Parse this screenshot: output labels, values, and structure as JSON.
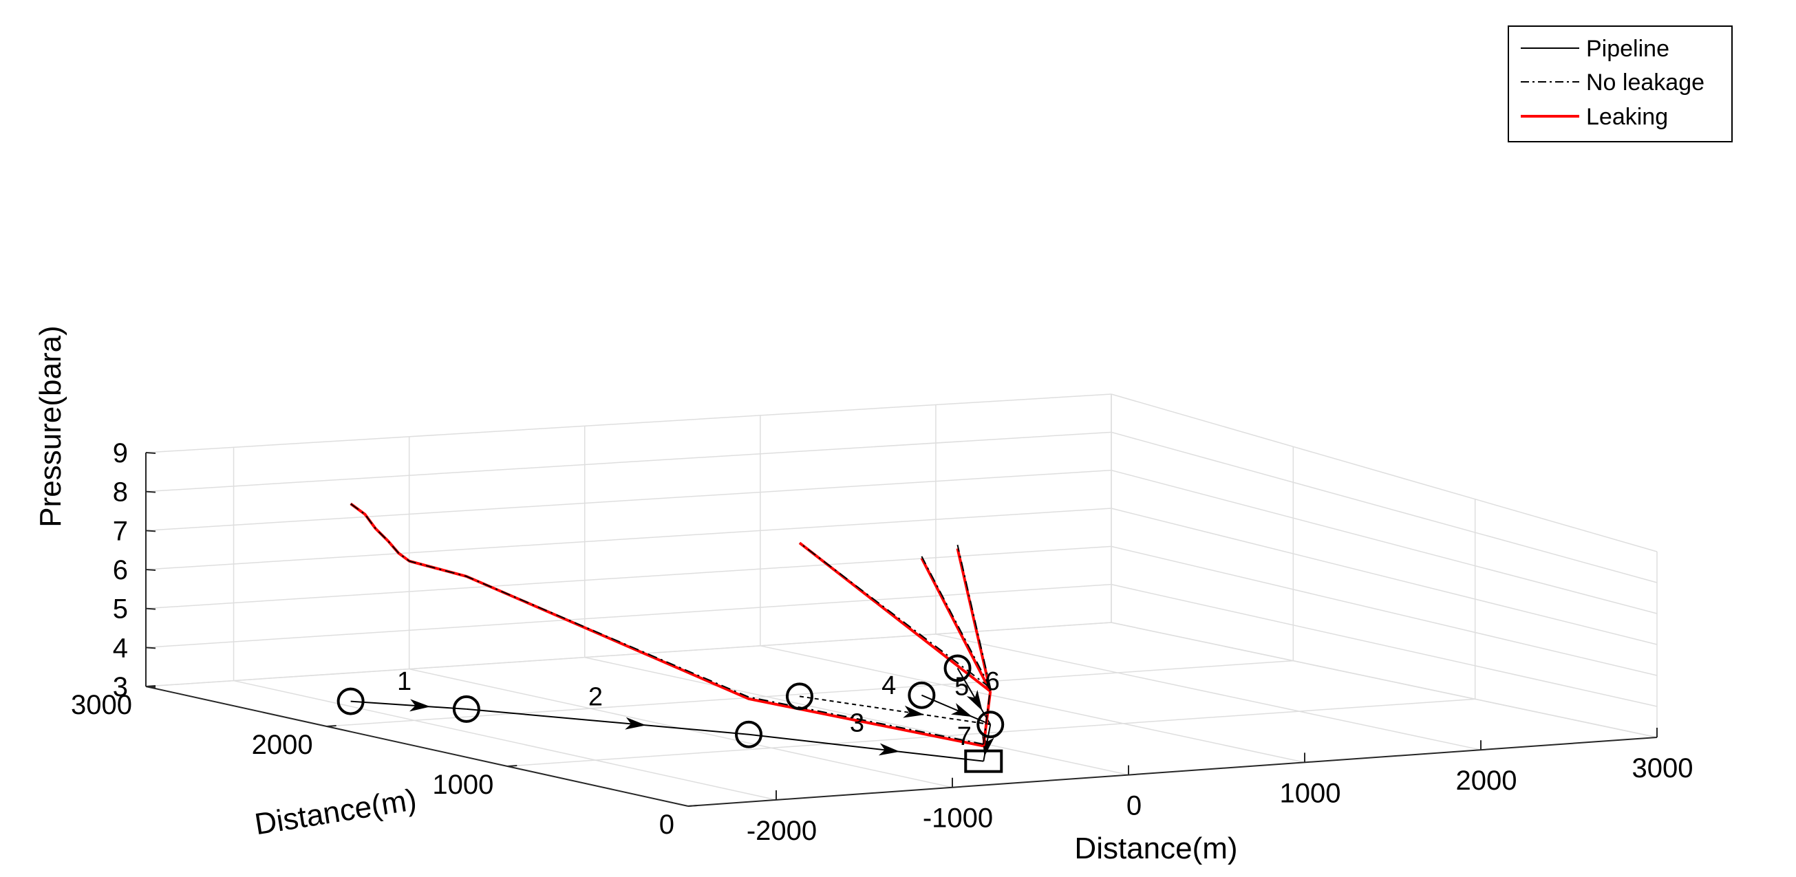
{
  "chart_data": {
    "type": "line",
    "projection": "3d",
    "xlabel": "Distance(m)",
    "ylabel": "Distance(m)",
    "zlabel": "Pressure(bara)",
    "xlim": [
      -2500,
      3000
    ],
    "ylim": [
      0,
      3000
    ],
    "zlim": [
      3,
      9
    ],
    "x_ticks": [
      -2000,
      -1000,
      0,
      1000,
      2000,
      3000
    ],
    "y_ticks": [
      0,
      1000,
      2000,
      3000
    ],
    "z_ticks": [
      3,
      4,
      5,
      6,
      7,
      8,
      9
    ],
    "x_tick_labels": [
      "-2000",
      "-1000",
      "0",
      "1000",
      "2000",
      "3000"
    ],
    "y_tick_labels": [
      "0",
      "1000",
      "2000",
      "3000"
    ],
    "z_tick_labels": [
      "3",
      "4",
      "5",
      "6",
      "7",
      "8",
      "9"
    ],
    "grid": true,
    "legend_position": "top-right",
    "legend": [
      "Pipeline",
      "No leakage",
      "Leaking"
    ],
    "nodes": [
      {
        "id": "n0",
        "x": -1900,
        "y": 2450,
        "marker": "circle"
      },
      {
        "id": "n1",
        "x": -1550,
        "y": 2150,
        "marker": "circle"
      },
      {
        "id": "n2",
        "x": -830,
        "y": 1290,
        "marker": "circle"
      },
      {
        "id": "n3",
        "x": -350,
        "y": 460,
        "marker": "square"
      },
      {
        "id": "n4",
        "x": 410,
        "y": 1160,
        "marker": "circle"
      },
      {
        "id": "n5",
        "x": 150,
        "y": 1960,
        "marker": "circle"
      },
      {
        "id": "n6",
        "x": 700,
        "y": 1820,
        "marker": "circle"
      },
      {
        "id": "n7",
        "x": 1400,
        "y": 2300,
        "marker": "circle"
      }
    ],
    "segments": [
      {
        "label": "1",
        "from": "n0",
        "to": "n1"
      },
      {
        "label": "2",
        "from": "n1",
        "to": "n2"
      },
      {
        "label": "3",
        "from": "n2",
        "to": "n3"
      },
      {
        "label": "4",
        "from": "n5",
        "to": "n4"
      },
      {
        "label": "5",
        "from": "n6",
        "to": "n4"
      },
      {
        "label": "6",
        "from": "n7",
        "to": "n4"
      },
      {
        "label": "7",
        "from": "n4",
        "to": "n3"
      }
    ],
    "series": [
      {
        "name": "No leakage",
        "style": "dash-dot",
        "color": "#000000",
        "lines": [
          [
            [
              -1900,
              2450,
              8.2
            ],
            [
              -1850,
              2420,
              7.95
            ],
            [
              -1820,
              2390,
              7.6
            ],
            [
              -1780,
              2360,
              7.3
            ],
            [
              -1750,
              2330,
              7.0
            ],
            [
              -1720,
              2300,
              6.82
            ],
            [
              -1550,
              2150,
              6.55
            ],
            [
              -830,
              1290,
              4.05
            ],
            [
              -350,
              460,
              3.5
            ]
          ],
          [
            [
              -350,
              460,
              3.5
            ],
            [
              410,
              1160,
              4.05
            ]
          ],
          [
            [
              410,
              1160,
              4.05
            ],
            [
              150,
              1960,
              7.2
            ]
          ],
          [
            [
              410,
              1160,
              4.05
            ],
            [
              700,
              1820,
              6.85
            ]
          ],
          [
            [
              410,
              1160,
              4.05
            ],
            [
              1400,
              2300,
              6.35
            ]
          ]
        ]
      },
      {
        "name": "Leaking",
        "style": "solid",
        "color": "#ff0000",
        "lines": [
          [
            [
              -1900,
              2450,
              8.2
            ],
            [
              -1850,
              2420,
              7.95
            ],
            [
              -1820,
              2390,
              7.6
            ],
            [
              -1780,
              2360,
              7.3
            ],
            [
              -1750,
              2330,
              7.0
            ],
            [
              -1720,
              2300,
              6.82
            ],
            [
              -1550,
              2150,
              6.55
            ],
            [
              -830,
              1290,
              4.0
            ],
            [
              -350,
              460,
              3.45
            ]
          ],
          [
            [
              -350,
              460,
              3.45
            ],
            [
              410,
              1160,
              3.95
            ]
          ],
          [
            [
              410,
              1160,
              3.95
            ],
            [
              150,
              1960,
              7.2
            ]
          ],
          [
            [
              410,
              1160,
              3.95
            ],
            [
              700,
              1820,
              6.8
            ]
          ],
          [
            [
              410,
              1160,
              3.95
            ],
            [
              1400,
              2300,
              6.25
            ]
          ]
        ]
      }
    ]
  }
}
